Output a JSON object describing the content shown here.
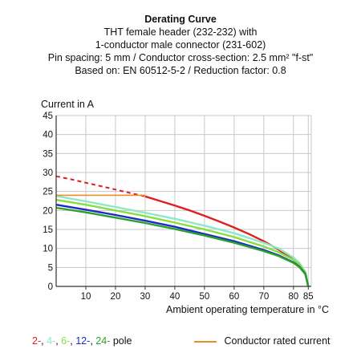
{
  "title": {
    "line1": "Derating Curve",
    "line2": "THT female header (232-232) with",
    "line3": "1-conductor male connector (231-602)",
    "line4": "Pin spacing: 5 mm / Conductor cross-section: 2.5 mm² \"f-st\"",
    "line5": "Based on: EN 60512-5-2 / Reduction factor: 0.8"
  },
  "chart_data": {
    "type": "line",
    "ylabel": "Current in A",
    "xlabel": "Ambient operating temperature in °C",
    "xlim": [
      0,
      86
    ],
    "ylim": [
      0,
      45
    ],
    "xticks": [
      10,
      20,
      30,
      40,
      50,
      60,
      70,
      80,
      85
    ],
    "yticks": [
      0,
      5,
      10,
      15,
      20,
      25,
      30,
      35,
      40,
      45
    ],
    "grid": true,
    "series": [
      {
        "color": "#e02020",
        "dashed_x": [
          0,
          5,
          10,
          15,
          20,
          25,
          30
        ],
        "dashed_y": [
          29,
          28.2,
          27.3,
          26.4,
          25.5,
          24.6,
          23.7
        ],
        "x": [
          30,
          35,
          40,
          45,
          50,
          55,
          60,
          65,
          70,
          75,
          80,
          82,
          84,
          85
        ],
        "y": [
          23.7,
          22.5,
          21.3,
          20.0,
          18.6,
          17.1,
          15.5,
          13.8,
          11.9,
          9.7,
          7.0,
          5.6,
          3.5,
          0
        ]
      },
      {
        "color": "#8ee8c8",
        "x": [
          0,
          10,
          20,
          30,
          40,
          50,
          60,
          70,
          75,
          80,
          82,
          84,
          85
        ],
        "y": [
          23.8,
          22.4,
          20.9,
          19.4,
          17.8,
          16.0,
          14.0,
          11.5,
          10.0,
          7.6,
          6.2,
          3.8,
          0
        ]
      },
      {
        "color": "#88dd44",
        "x": [
          0,
          10,
          20,
          30,
          40,
          50,
          60,
          70,
          75,
          80,
          82,
          84,
          85
        ],
        "y": [
          22.8,
          21.5,
          20.0,
          18.5,
          16.8,
          15.0,
          13.0,
          10.5,
          9.0,
          7.0,
          5.8,
          3.6,
          0
        ]
      },
      {
        "color": "#1c2ac8",
        "x": [
          0,
          10,
          20,
          30,
          40,
          50,
          60,
          70,
          75,
          80,
          82,
          84,
          85
        ],
        "y": [
          21.5,
          20.2,
          18.8,
          17.3,
          15.7,
          13.8,
          11.9,
          9.6,
          8.2,
          6.3,
          5.2,
          3.3,
          0
        ]
      },
      {
        "color": "#2aa02a",
        "x": [
          0,
          10,
          20,
          30,
          40,
          50,
          60,
          70,
          75,
          80,
          82,
          84,
          85
        ],
        "y": [
          20.7,
          19.5,
          18.1,
          16.7,
          15.1,
          13.4,
          11.5,
          9.3,
          8.0,
          6.2,
          5.1,
          3.2,
          0
        ]
      },
      {
        "color": "#f08a2e",
        "x": [
          0,
          30
        ],
        "y": [
          24.0,
          24.0
        ]
      }
    ]
  },
  "legend": {
    "items": [
      {
        "text": "2-",
        "color": "#e02020"
      },
      {
        "text": ", ",
        "color": "#111111"
      },
      {
        "text": "4-",
        "color": "#8ee8c8"
      },
      {
        "text": ", ",
        "color": "#111111"
      },
      {
        "text": "6-",
        "color": "#88dd44"
      },
      {
        "text": ", ",
        "color": "#111111"
      },
      {
        "text": "12-",
        "color": "#1c2ac8"
      },
      {
        "text": ", ",
        "color": "#111111"
      },
      {
        "text": "24-",
        "color": "#2aa02a"
      },
      {
        "text": " pole",
        "color": "#111111"
      }
    ],
    "conductor_label": "Conductor rated current",
    "conductor_color": "#f08a2e"
  }
}
